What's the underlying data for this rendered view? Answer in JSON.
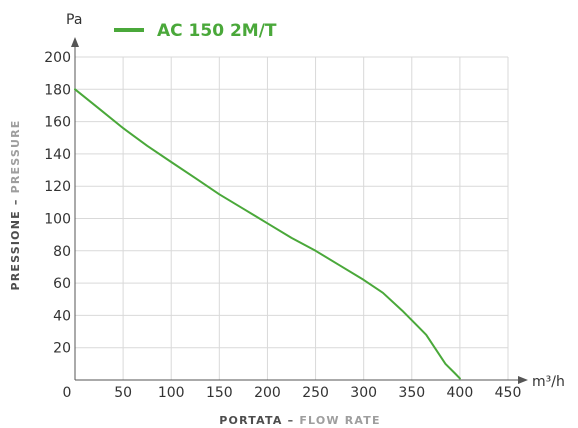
{
  "chart_data": {
    "type": "line",
    "xlim": [
      0,
      450
    ],
    "ylim": [
      0,
      200
    ],
    "x_ticks": [
      50,
      100,
      150,
      200,
      250,
      300,
      350,
      400,
      450
    ],
    "y_ticks": [
      20,
      40,
      60,
      80,
      100,
      120,
      140,
      160,
      180,
      200
    ],
    "origin_label": "0",
    "x_unit": "m³/h",
    "y_unit": "Pa",
    "xlabel": {
      "primary": "PORTATA",
      "separator": " – ",
      "secondary": "FLOW RATE"
    },
    "ylabel": {
      "primary": "PRESSIONE",
      "separator": " – ",
      "secondary": "PRESSURE"
    },
    "grid": true,
    "legend_position": "top",
    "colors": {
      "series": "#4aa83a",
      "grid": "#d9d9d9",
      "axis": "#555555",
      "label_dark": "#4d4d4d",
      "label_light": "#9e9e9e"
    },
    "series": [
      {
        "name": "AC 150 2M/T",
        "x": [
          0,
          25,
          50,
          75,
          100,
          125,
          150,
          175,
          200,
          225,
          250,
          275,
          300,
          320,
          340,
          355,
          365,
          375,
          385,
          395,
          400
        ],
        "y": [
          180,
          168,
          156,
          145,
          135,
          125,
          115,
          106,
          97,
          88,
          80,
          71,
          62,
          54,
          43,
          34,
          28,
          19,
          10,
          4,
          1
        ]
      }
    ]
  }
}
